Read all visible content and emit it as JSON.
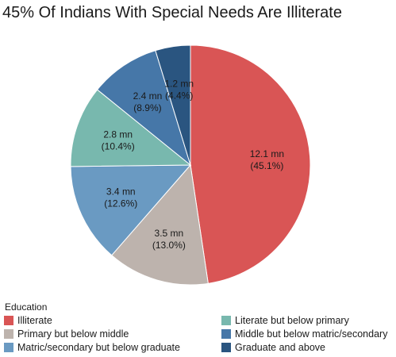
{
  "title": "45% Of Indians With Special Needs Are Illiterate",
  "legend_title": "Education",
  "chart_data": {
    "type": "pie",
    "title": "45% Of Indians With Special Needs Are Illiterate",
    "legend_title": "Education",
    "legend_position": "bottom",
    "unit": "mn",
    "slices": [
      {
        "label": "Illiterate",
        "value": 12.1,
        "percent": 45.1,
        "value_text": "12.1 mn",
        "percent_text": "(45.1%)",
        "color": "#d95555"
      },
      {
        "label": "Primary but below middle",
        "value": 3.5,
        "percent": 13.0,
        "value_text": "3.5 mn",
        "percent_text": "(13.0%)",
        "color": "#bdb3ad"
      },
      {
        "label": "Matric/secondary but below graduate",
        "value": 3.4,
        "percent": 12.6,
        "value_text": "3.4 mn",
        "percent_text": "(12.6%)",
        "color": "#6a9ac2"
      },
      {
        "label": "Literate but below primary",
        "value": 2.8,
        "percent": 10.4,
        "value_text": "2.8 mn",
        "percent_text": "(10.4%)",
        "color": "#78b8ae"
      },
      {
        "label": "Middle but below matric/secondary",
        "value": 2.4,
        "percent": 8.9,
        "value_text": "2.4 mn",
        "percent_text": "(8.9%)",
        "color": "#4677a8"
      },
      {
        "label": "Graduate and above",
        "value": 1.2,
        "percent": 4.4,
        "value_text": "1.2 mn",
        "percent_text": "(4.4%)",
        "color": "#2a5580"
      }
    ],
    "legend_order": [
      "Illiterate",
      "Literate but below primary",
      "Primary but below middle",
      "Middle but below matric/secondary",
      "Matric/secondary but below graduate",
      "Graduate and above"
    ]
  }
}
